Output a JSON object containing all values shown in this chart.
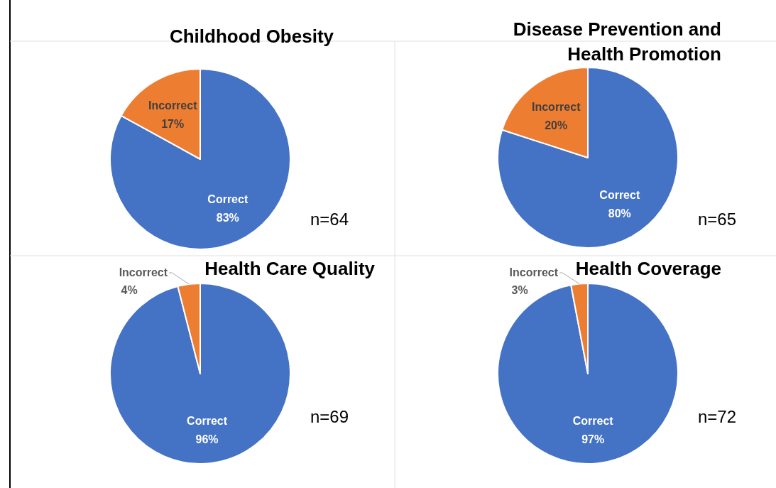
{
  "chart_data": [
    {
      "type": "pie",
      "title": "Childhood Obesity",
      "categories": [
        "Correct",
        "Incorrect"
      ],
      "values": [
        83,
        17
      ],
      "colors": [
        "#4472c4",
        "#ed7d31"
      ],
      "value_labels": [
        "83%",
        "17%"
      ],
      "annotations": [
        "n=64"
      ]
    },
    {
      "type": "pie",
      "title": "Disease Prevention and Health Promotion",
      "categories": [
        "Correct",
        "Incorrect"
      ],
      "values": [
        80,
        20
      ],
      "colors": [
        "#4472c4",
        "#ed7d31"
      ],
      "value_labels": [
        "80%",
        "20%"
      ],
      "annotations": [
        "n=65"
      ]
    },
    {
      "type": "pie",
      "title": "Health Care Quality",
      "categories": [
        "Correct",
        "Incorrect"
      ],
      "values": [
        96,
        4
      ],
      "colors": [
        "#4472c4",
        "#ed7d31"
      ],
      "value_labels": [
        "96%",
        "4%"
      ],
      "annotations": [
        "n=69"
      ]
    },
    {
      "type": "pie",
      "title": "Health Coverage",
      "categories": [
        "Correct",
        "Incorrect"
      ],
      "values": [
        97,
        3
      ],
      "colors": [
        "#4472c4",
        "#ed7d31"
      ],
      "value_labels": [
        "97%",
        "3%"
      ],
      "annotations": [
        "n=72"
      ]
    }
  ]
}
